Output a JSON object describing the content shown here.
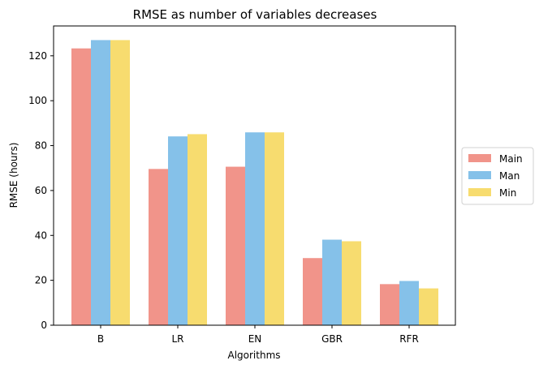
{
  "chart_data": {
    "type": "bar",
    "title": "RMSE as number of variables decreases",
    "xlabel": "Algorithms",
    "ylabel": "RMSE (hours)",
    "categories": [
      "B",
      "LR",
      "EN",
      "GBR",
      "RFR"
    ],
    "series": [
      {
        "name": "Main",
        "color": "#f1948a",
        "values": [
          123.3,
          69.6,
          70.6,
          29.9,
          18.3
        ]
      },
      {
        "name": "Man",
        "color": "#85c1e9",
        "values": [
          127.0,
          84.1,
          85.9,
          38.1,
          19.7
        ]
      },
      {
        "name": "Min",
        "color": "#f7dc6f",
        "values": [
          127.0,
          85.1,
          85.9,
          37.4,
          16.4
        ]
      }
    ],
    "ylim": [
      0,
      133.3
    ],
    "yticks": [
      0,
      20,
      40,
      60,
      80,
      100,
      120
    ],
    "grid": false,
    "legend_position": "center-right outside"
  }
}
